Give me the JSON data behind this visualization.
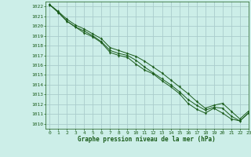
{
  "title": "Graphe pression niveau de la mer (hPa)",
  "background_color": "#cceee8",
  "grid_color": "#aacccc",
  "line_color": "#1a5c1a",
  "marker_color": "#1a5c1a",
  "xlim": [
    -0.5,
    23
  ],
  "ylim": [
    1009.5,
    1022.5
  ],
  "xticks": [
    0,
    1,
    2,
    3,
    4,
    5,
    6,
    7,
    8,
    9,
    10,
    11,
    12,
    13,
    14,
    15,
    16,
    17,
    18,
    19,
    20,
    21,
    22,
    23
  ],
  "yticks": [
    1010,
    1011,
    1012,
    1013,
    1014,
    1015,
    1016,
    1017,
    1018,
    1019,
    1020,
    1021,
    1022
  ],
  "series": [
    [
      1022.2,
      1021.4,
      1020.5,
      1019.9,
      1019.3,
      1018.9,
      1018.3,
      1017.3,
      1017.0,
      1016.8,
      1016.1,
      1015.5,
      1015.1,
      1014.4,
      1013.8,
      1013.1,
      1012.1,
      1011.5,
      1011.1,
      1011.6,
      1011.1,
      1010.5,
      1010.3,
      1011.1
    ],
    [
      1022.2,
      1021.4,
      1020.5,
      1019.9,
      1019.5,
      1019.0,
      1018.4,
      1017.5,
      1017.2,
      1017.0,
      1016.5,
      1015.8,
      1015.2,
      1014.6,
      1014.0,
      1013.3,
      1012.5,
      1011.9,
      1011.4,
      1011.7,
      1011.6,
      1010.8,
      1010.3,
      1011.1
    ],
    [
      1022.2,
      1021.5,
      1020.7,
      1020.1,
      1019.7,
      1019.2,
      1018.7,
      1017.8,
      1017.5,
      1017.2,
      1016.9,
      1016.4,
      1015.8,
      1015.2,
      1014.5,
      1013.8,
      1013.1,
      1012.3,
      1011.6,
      1011.9,
      1012.1,
      1011.3,
      1010.5,
      1011.3
    ]
  ]
}
